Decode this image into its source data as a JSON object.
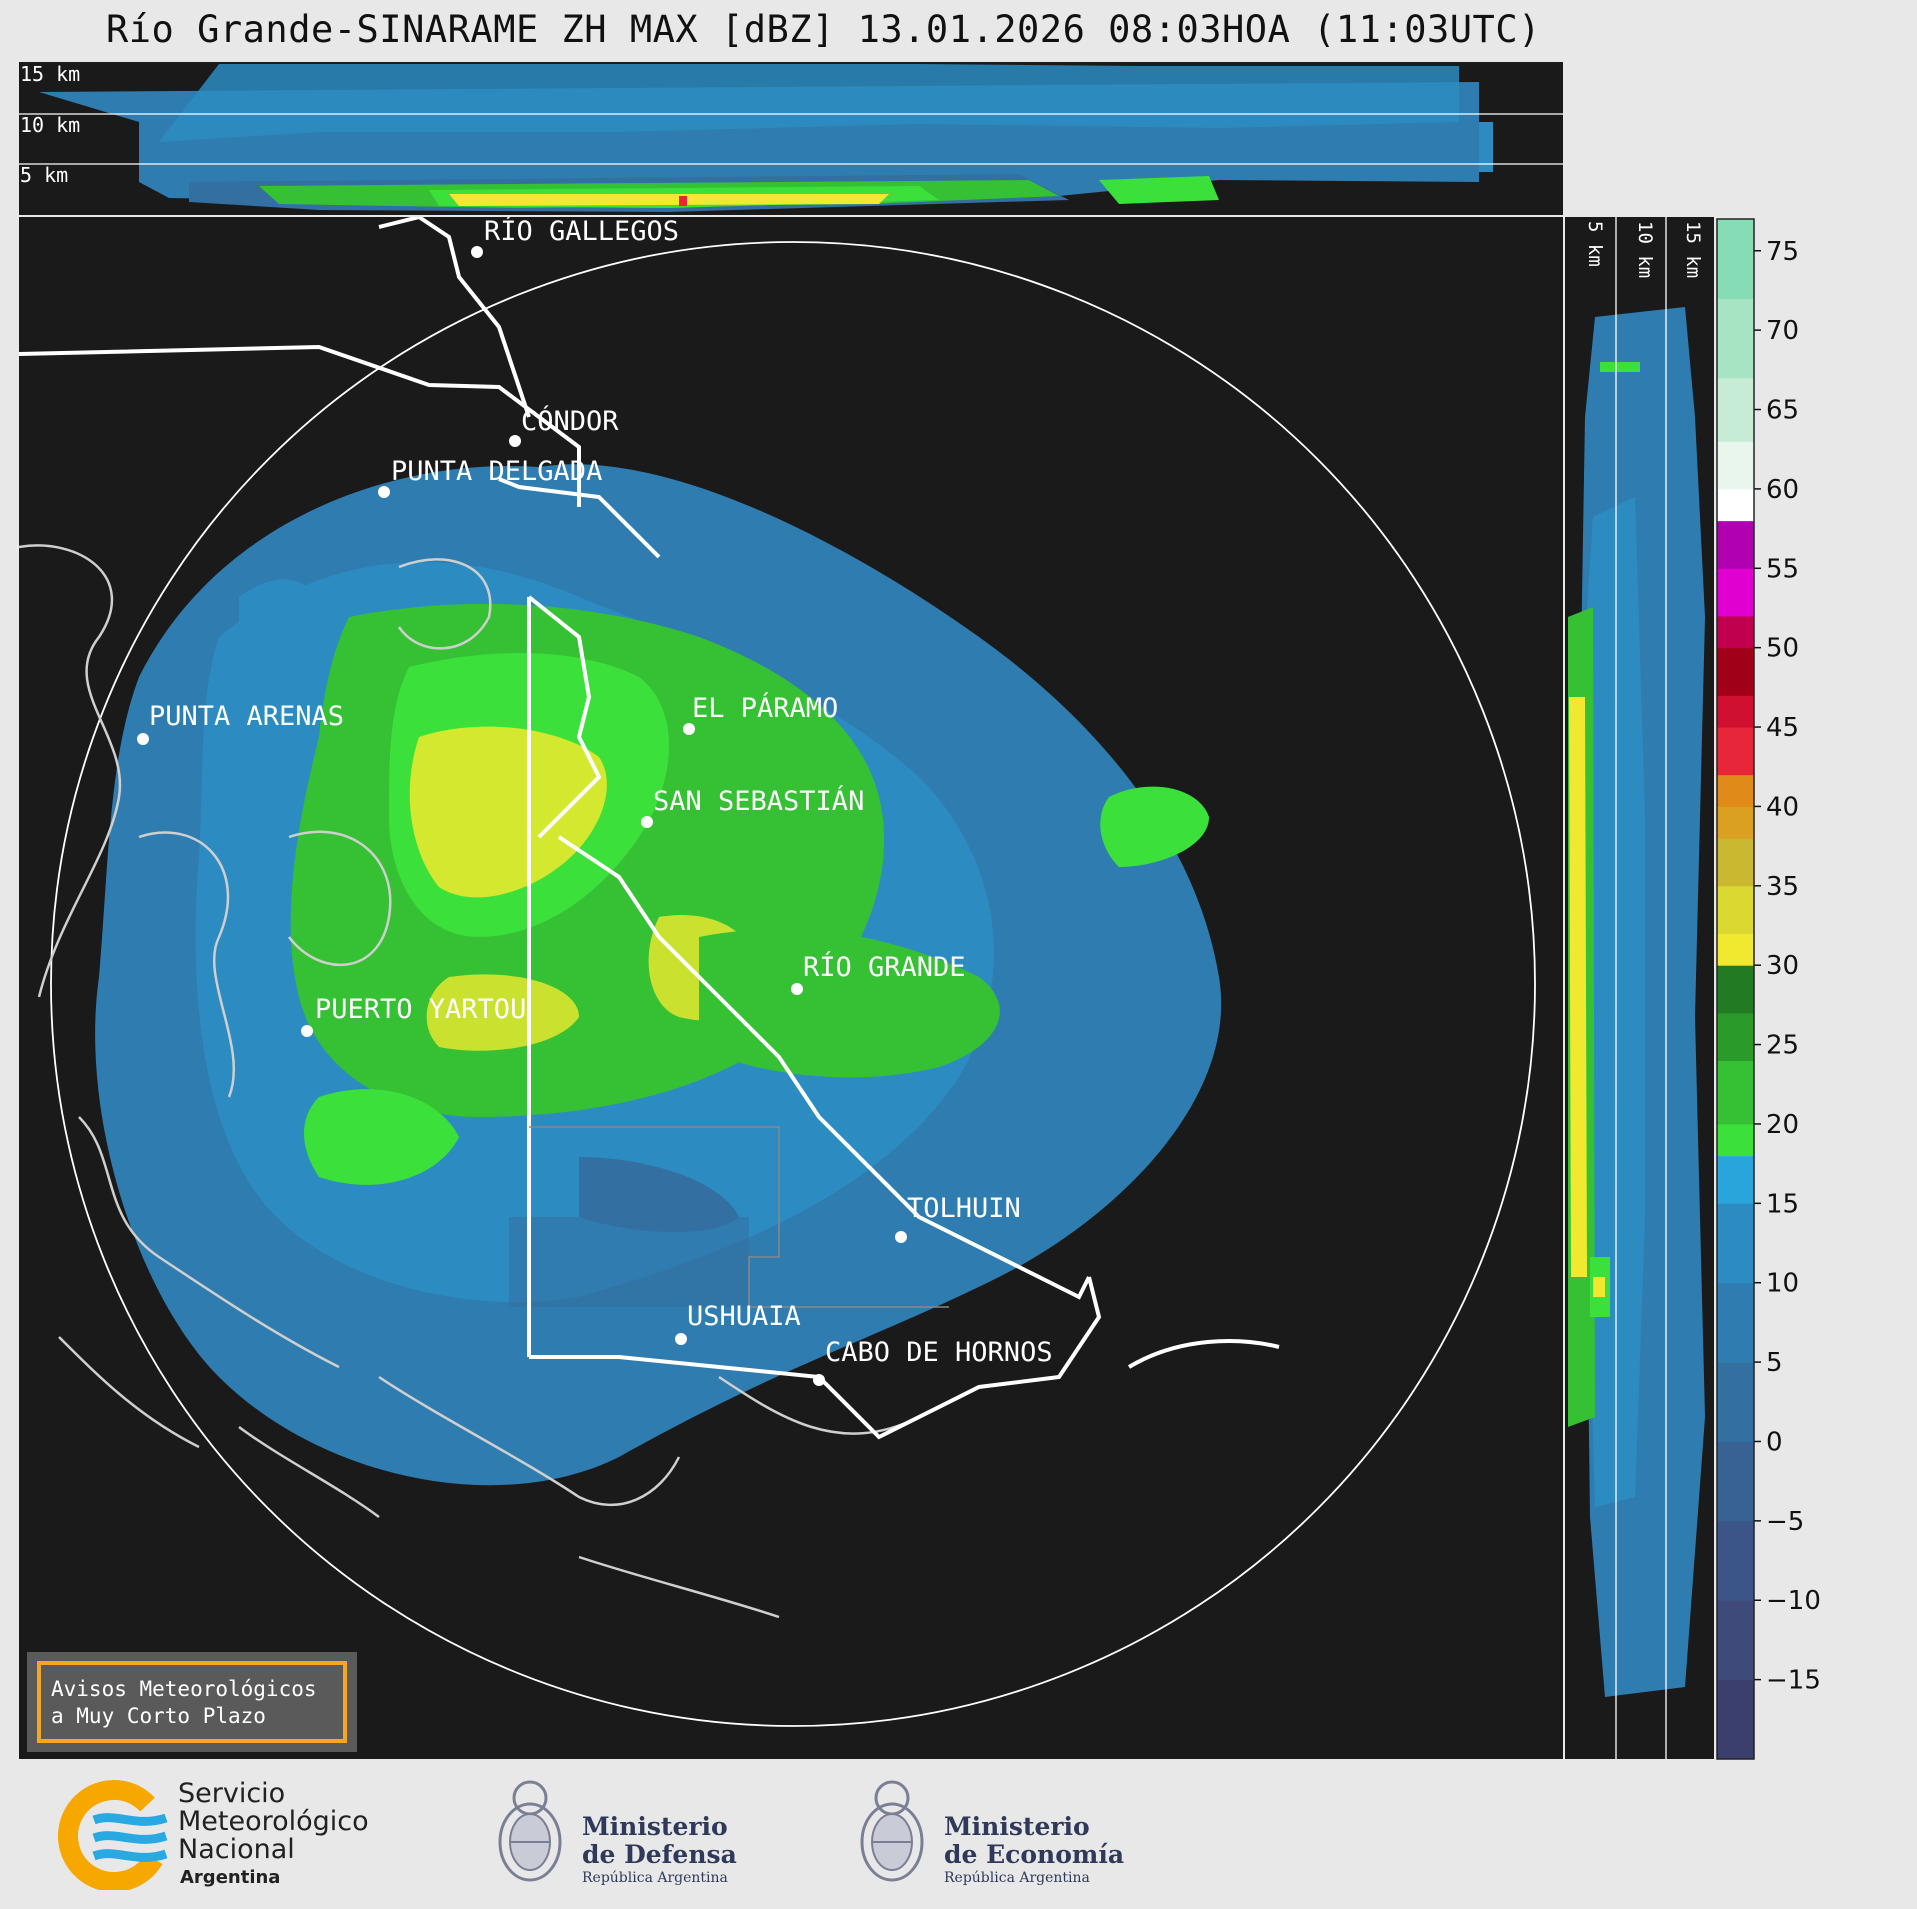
{
  "title": "Río Grande-SINARAME ZH MAX [dBZ] 13.01.2026 08:03HOA (11:03UTC)",
  "top_panel": {
    "height_labels": [
      "15 km",
      "10 km",
      "5 km"
    ]
  },
  "side_panel": {
    "height_labels": [
      "5 km",
      "10 km",
      "15 km"
    ]
  },
  "cities": [
    {
      "name": "RÍO GALLEGOS"
    },
    {
      "name": "CÓNDOR"
    },
    {
      "name": "PUNTA DELGADA"
    },
    {
      "name": "PUNTA ARENAS"
    },
    {
      "name": "EL PÁRAMO"
    },
    {
      "name": "SAN SEBASTIÁN"
    },
    {
      "name": "RÍO GRANDE"
    },
    {
      "name": "PUERTO YARTOU"
    },
    {
      "name": "TOLHUIN"
    },
    {
      "name": "USHUAIA"
    },
    {
      "name": "CABO DE HORNOS"
    }
  ],
  "notice": {
    "line1": "Avisos Meteorológicos",
    "line2": "a Muy Corto Plazo"
  },
  "colorbar": {
    "unit": "dBZ",
    "min": -20,
    "max": 77,
    "ticks": [
      "75",
      "70",
      "65",
      "60",
      "55",
      "50",
      "45",
      "40",
      "35",
      "30",
      "25",
      "20",
      "15",
      "10",
      "5",
      "0",
      "−5",
      "−10",
      "−15"
    ],
    "tick_values": [
      75,
      70,
      65,
      60,
      55,
      50,
      45,
      40,
      35,
      30,
      25,
      20,
      15,
      10,
      5,
      0,
      -5,
      -10,
      -15
    ],
    "segments": [
      {
        "from": -20,
        "to": -15,
        "color": "#3b3f6e"
      },
      {
        "from": -15,
        "to": -10,
        "color": "#3d4a7a"
      },
      {
        "from": -10,
        "to": -5,
        "color": "#3b5588"
      },
      {
        "from": -5,
        "to": 0,
        "color": "#386294"
      },
      {
        "from": 0,
        "to": 5,
        "color": "#336fa1"
      },
      {
        "from": 5,
        "to": 10,
        "color": "#2f7db0"
      },
      {
        "from": 10,
        "to": 15,
        "color": "#2c8cc2"
      },
      {
        "from": 15,
        "to": 18,
        "color": "#2aa5db"
      },
      {
        "from": 18,
        "to": 20,
        "color": "#3be13a"
      },
      {
        "from": 20,
        "to": 24,
        "color": "#35c133"
      },
      {
        "from": 24,
        "to": 27,
        "color": "#2a9a2a"
      },
      {
        "from": 27,
        "to": 30,
        "color": "#227a22"
      },
      {
        "from": 30,
        "to": 32,
        "color": "#f0e92f"
      },
      {
        "from": 32,
        "to": 35,
        "color": "#dcd832"
      },
      {
        "from": 35,
        "to": 38,
        "color": "#c9b830"
      },
      {
        "from": 38,
        "to": 40,
        "color": "#d9a021"
      },
      {
        "from": 40,
        "to": 42,
        "color": "#e08a1a"
      },
      {
        "from": 42,
        "to": 45,
        "color": "#e8263a"
      },
      {
        "from": 45,
        "to": 47,
        "color": "#d01030"
      },
      {
        "from": 47,
        "to": 50,
        "color": "#a00018"
      },
      {
        "from": 50,
        "to": 52,
        "color": "#c0004f"
      },
      {
        "from": 52,
        "to": 55,
        "color": "#e000d0"
      },
      {
        "from": 55,
        "to": 58,
        "color": "#b000b0"
      },
      {
        "from": 58,
        "to": 60,
        "color": "#ffffff"
      },
      {
        "from": 60,
        "to": 63,
        "color": "#e8f6ee"
      },
      {
        "from": 63,
        "to": 67,
        "color": "#c6ecd6"
      },
      {
        "from": 67,
        "to": 72,
        "color": "#a6e4c4"
      },
      {
        "from": 72,
        "to": 77,
        "color": "#86dcb4"
      }
    ]
  },
  "logos": {
    "smn": {
      "line1": "Servicio",
      "line2": "Meteorológico",
      "line3": "Nacional",
      "line4": "Argentina"
    },
    "defensa": {
      "line1": "Ministerio",
      "line2": "de Defensa",
      "line3": "República Argentina"
    },
    "economia": {
      "line1": "Ministerio",
      "line2": "de Economía",
      "line3": "República Argentina"
    }
  }
}
